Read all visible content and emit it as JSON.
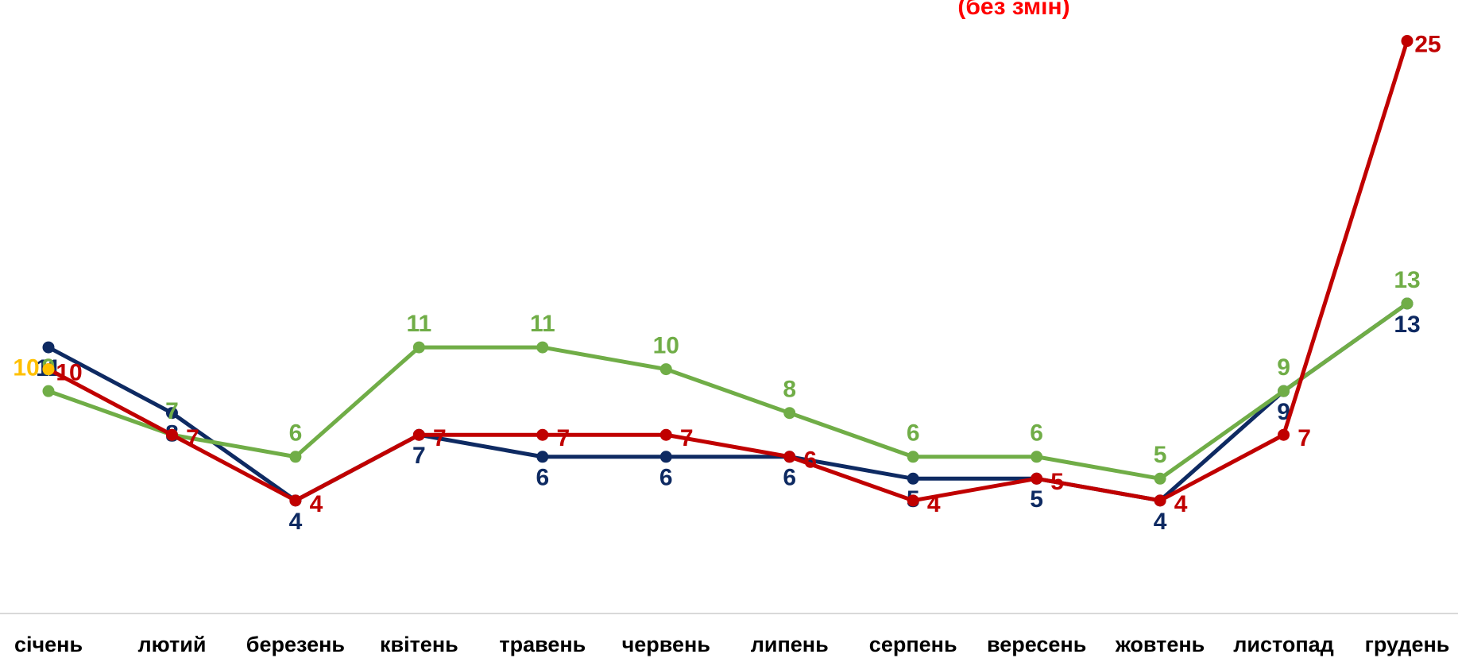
{
  "chart_data": {
    "type": "line",
    "annotation": "(без змін)",
    "categories": [
      "січень",
      "лютий",
      "березень",
      "квітень",
      "травень",
      "червень",
      "липень",
      "серпень",
      "вересень",
      "жовтень",
      "листопад",
      "грудень"
    ],
    "series": [
      {
        "color": "#0e2a62",
        "values": [
          11,
          8,
          4,
          7,
          6,
          6,
          6,
          5,
          5,
          4,
          9,
          13
        ]
      },
      {
        "color": "#70ad47",
        "values": [
          9,
          7,
          6,
          11,
          11,
          10,
          8,
          6,
          6,
          5,
          9,
          13
        ]
      },
      {
        "color": "#c00000",
        "values": [
          10,
          7,
          4,
          7,
          7,
          7,
          6,
          4,
          5,
          4,
          7,
          25
        ]
      },
      {
        "color": "#ffc000",
        "values": [
          10,
          null,
          null,
          null,
          null,
          null,
          null,
          null,
          null,
          null,
          null,
          null
        ]
      }
    ],
    "ylim": [
      0,
      26
    ],
    "grid": false
  }
}
